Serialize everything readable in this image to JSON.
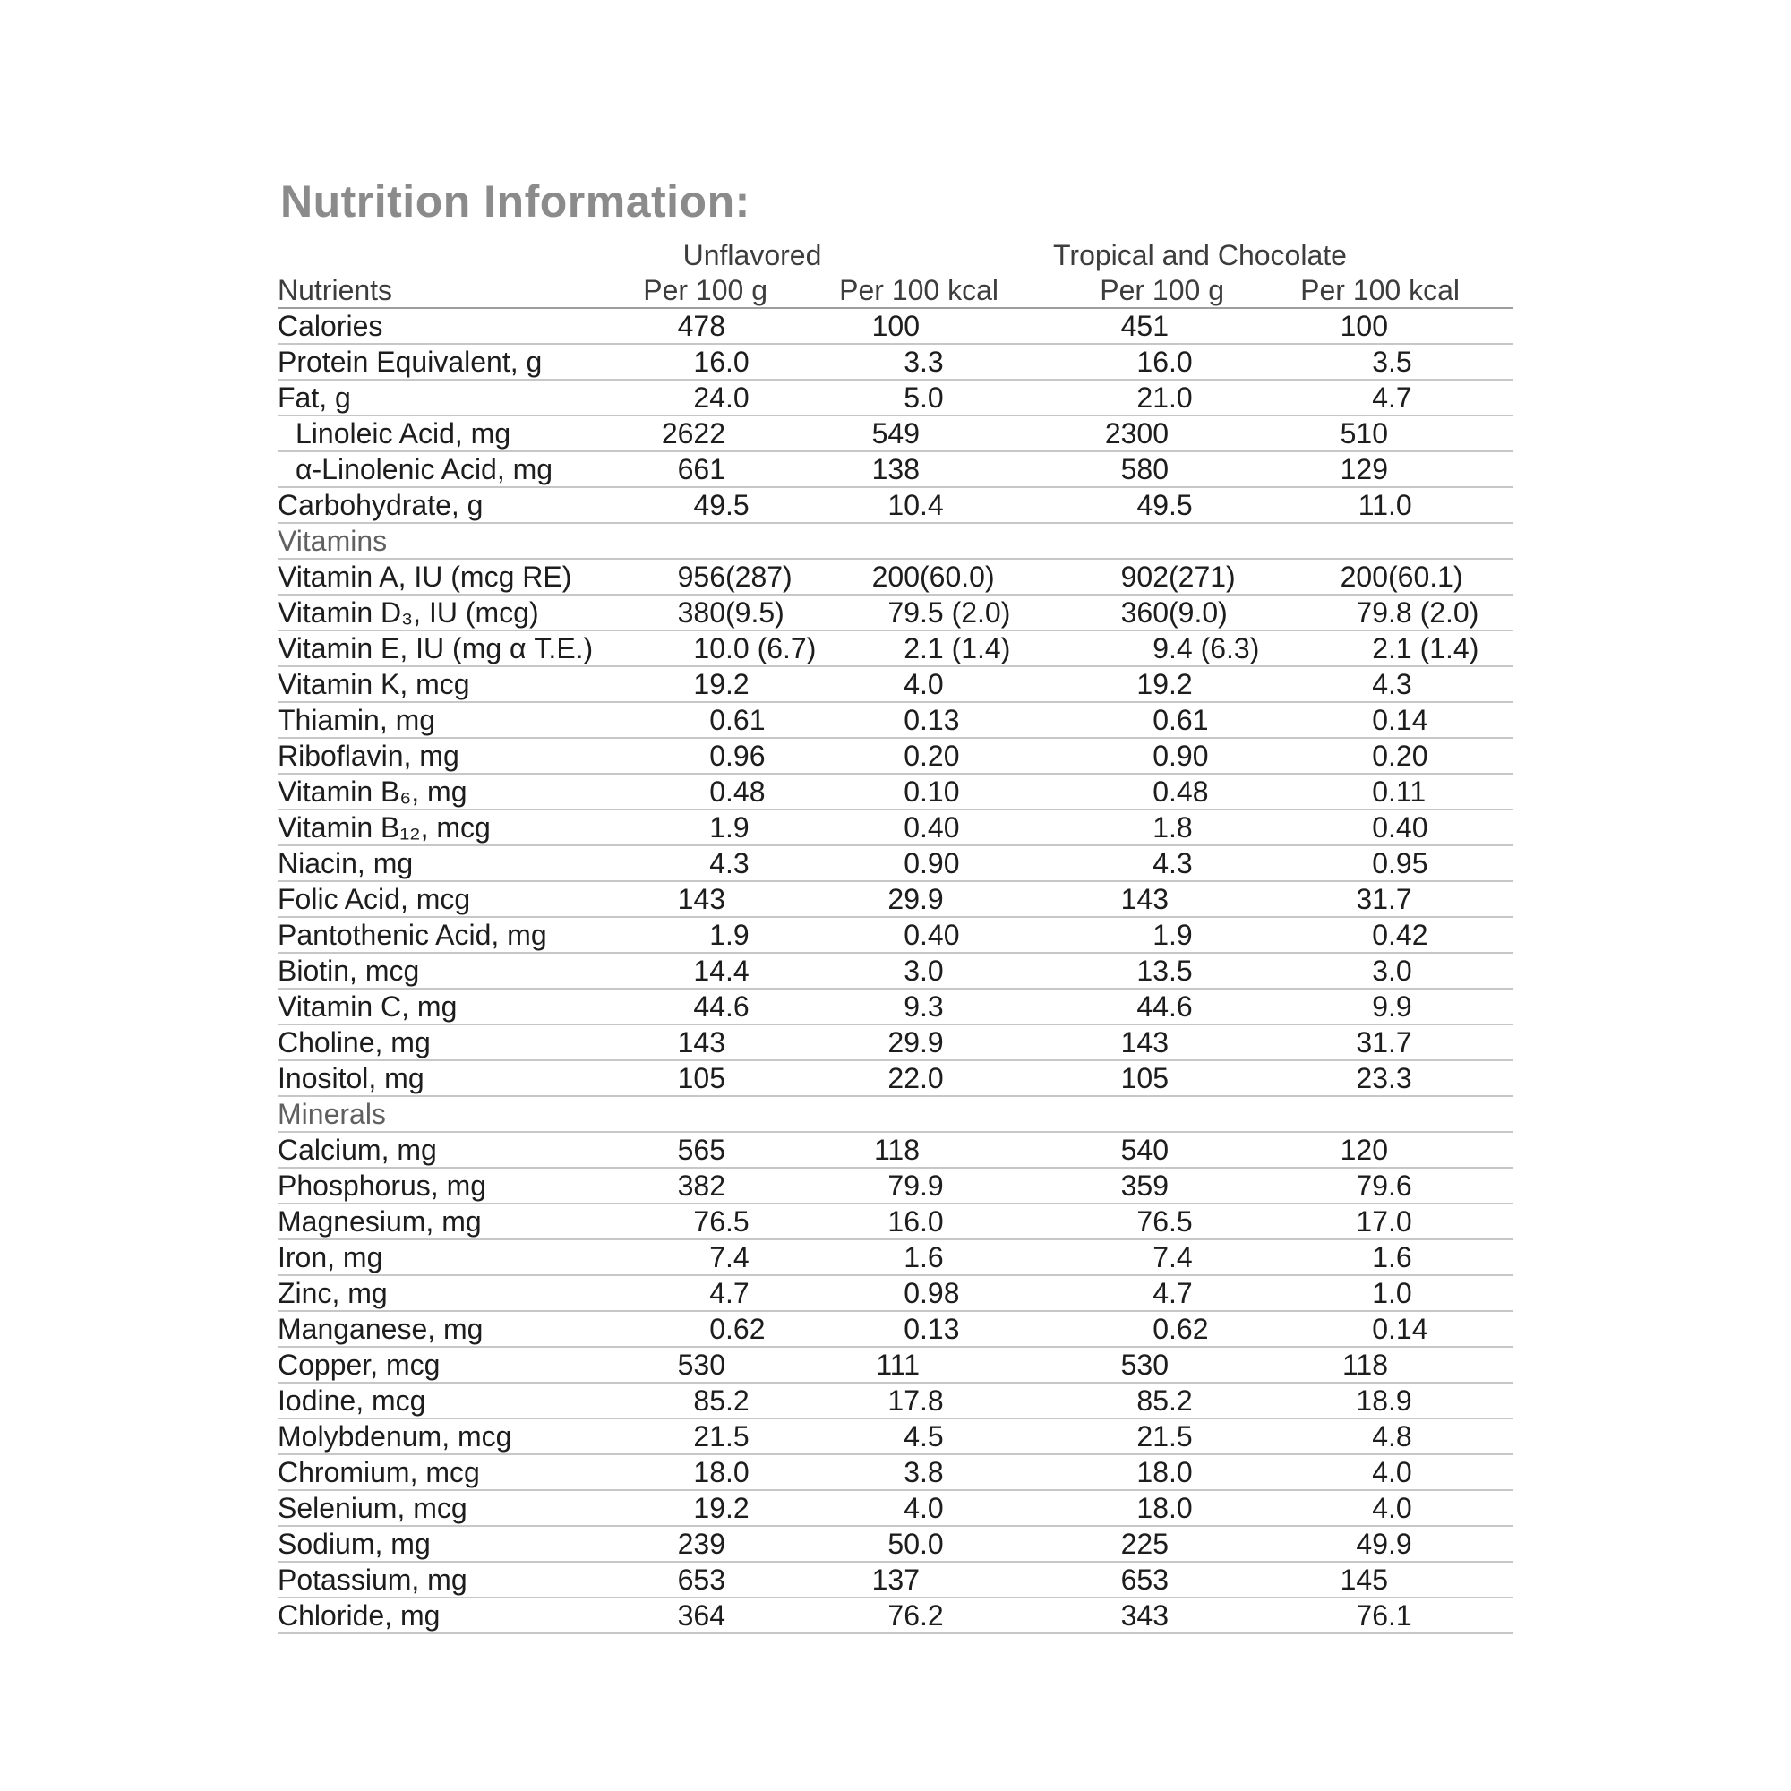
{
  "title": "Nutrition Information:",
  "table": {
    "group_headers": [
      "Unflavored",
      "Tropical and Chocolate"
    ],
    "col_headers": [
      "Nutrients",
      "Per 100 g",
      "Per 100 kcal",
      "Per 100 g",
      "Per 100 kcal"
    ],
    "rows": [
      {
        "label": "Calories",
        "values": [
          "478",
          "100",
          "451",
          "100"
        ]
      },
      {
        "label": "Protein Equivalent, g",
        "values": [
          "16.0",
          "3.3",
          "16.0",
          "3.5"
        ]
      },
      {
        "label": "Fat, g",
        "values": [
          "24.0",
          "5.0",
          "21.0",
          "4.7"
        ]
      },
      {
        "label": "Linoleic Acid, mg",
        "indent": true,
        "values": [
          "2622",
          "549",
          "2300",
          "510"
        ]
      },
      {
        "label": "α-Linolenic Acid, mg",
        "indent": true,
        "values": [
          "661",
          "138",
          "580",
          "129"
        ]
      },
      {
        "label": "Carbohydrate, g",
        "values": [
          "49.5",
          "10.4",
          "49.5",
          "11.0"
        ]
      },
      {
        "section": true,
        "label": "Vitamins"
      },
      {
        "label": "Vitamin A, IU (mcg RE)",
        "values": [
          "956 (287)",
          "200 (60.0)",
          "902 (271)",
          "200 (60.1)"
        ]
      },
      {
        "label": "Vitamin D₃, IU (mcg)",
        "values": [
          "380 (9.5)",
          "79.5 (2.0)",
          "360 (9.0)",
          "79.8 (2.0)"
        ]
      },
      {
        "label": "Vitamin E, IU (mg α T.E.)",
        "values": [
          "10.0 (6.7)",
          "2.1 (1.4)",
          "9.4 (6.3)",
          "2.1 (1.4)"
        ]
      },
      {
        "label": "Vitamin K, mcg",
        "values": [
          "19.2",
          "4.0",
          "19.2",
          "4.3"
        ]
      },
      {
        "label": "Thiamin, mg",
        "values": [
          "0.61",
          "0.13",
          "0.61",
          "0.14"
        ]
      },
      {
        "label": "Riboflavin, mg",
        "values": [
          "0.96",
          "0.20",
          "0.90",
          "0.20"
        ]
      },
      {
        "label": "Vitamin B₆, mg",
        "values": [
          "0.48",
          "0.10",
          "0.48",
          "0.11"
        ]
      },
      {
        "label": "Vitamin B₁₂, mcg",
        "values": [
          "1.9",
          "0.40",
          "1.8",
          "0.40"
        ]
      },
      {
        "label": "Niacin, mg",
        "values": [
          "4.3",
          "0.90",
          "4.3",
          "0.95"
        ]
      },
      {
        "label": "Folic Acid, mcg",
        "values": [
          "143",
          "29.9",
          "143",
          "31.7"
        ]
      },
      {
        "label": "Pantothenic Acid, mg",
        "values": [
          "1.9",
          "0.40",
          "1.9",
          "0.42"
        ]
      },
      {
        "label": "Biotin, mcg",
        "values": [
          "14.4",
          "3.0",
          "13.5",
          "3.0"
        ]
      },
      {
        "label": "Vitamin C, mg",
        "values": [
          "44.6",
          "9.3",
          "44.6",
          "9.9"
        ]
      },
      {
        "label": "Choline, mg",
        "values": [
          "143",
          "29.9",
          "143",
          "31.7"
        ]
      },
      {
        "label": "Inositol, mg",
        "values": [
          "105",
          "22.0",
          "105",
          "23.3"
        ]
      },
      {
        "section": true,
        "label": "Minerals"
      },
      {
        "label": "Calcium, mg",
        "values": [
          "565",
          "118",
          "540",
          "120"
        ]
      },
      {
        "label": "Phosphorus, mg",
        "values": [
          "382",
          "79.9",
          "359",
          "79.6"
        ]
      },
      {
        "label": "Magnesium, mg",
        "values": [
          "76.5",
          "16.0",
          "76.5",
          "17.0"
        ]
      },
      {
        "label": "Iron, mg",
        "values": [
          "7.4",
          "1.6",
          "7.4",
          "1.6"
        ]
      },
      {
        "label": "Zinc, mg",
        "values": [
          "4.7",
          "0.98",
          "4.7",
          "1.0"
        ]
      },
      {
        "label": "Manganese, mg",
        "values": [
          "0.62",
          "0.13",
          "0.62",
          "0.14"
        ]
      },
      {
        "label": "Copper, mcg",
        "values": [
          "530",
          "111",
          "530",
          "118"
        ]
      },
      {
        "label": "Iodine, mcg",
        "values": [
          "85.2",
          "17.8",
          "85.2",
          "18.9"
        ]
      },
      {
        "label": "Molybdenum, mcg",
        "values": [
          "21.5",
          "4.5",
          "21.5",
          "4.8"
        ]
      },
      {
        "label": "Chromium, mcg",
        "values": [
          "18.0",
          "3.8",
          "18.0",
          "4.0"
        ]
      },
      {
        "label": "Selenium, mcg",
        "values": [
          "19.2",
          "4.0",
          "18.0",
          "4.0"
        ]
      },
      {
        "label": "Sodium, mg",
        "values": [
          "239",
          "50.0",
          "225",
          "49.9"
        ]
      },
      {
        "label": "Potassium, mg",
        "values": [
          "653",
          "137",
          "653",
          "145"
        ]
      },
      {
        "label": "Chloride, mg",
        "values": [
          "364",
          "76.2",
          "343",
          "76.1"
        ]
      }
    ]
  }
}
